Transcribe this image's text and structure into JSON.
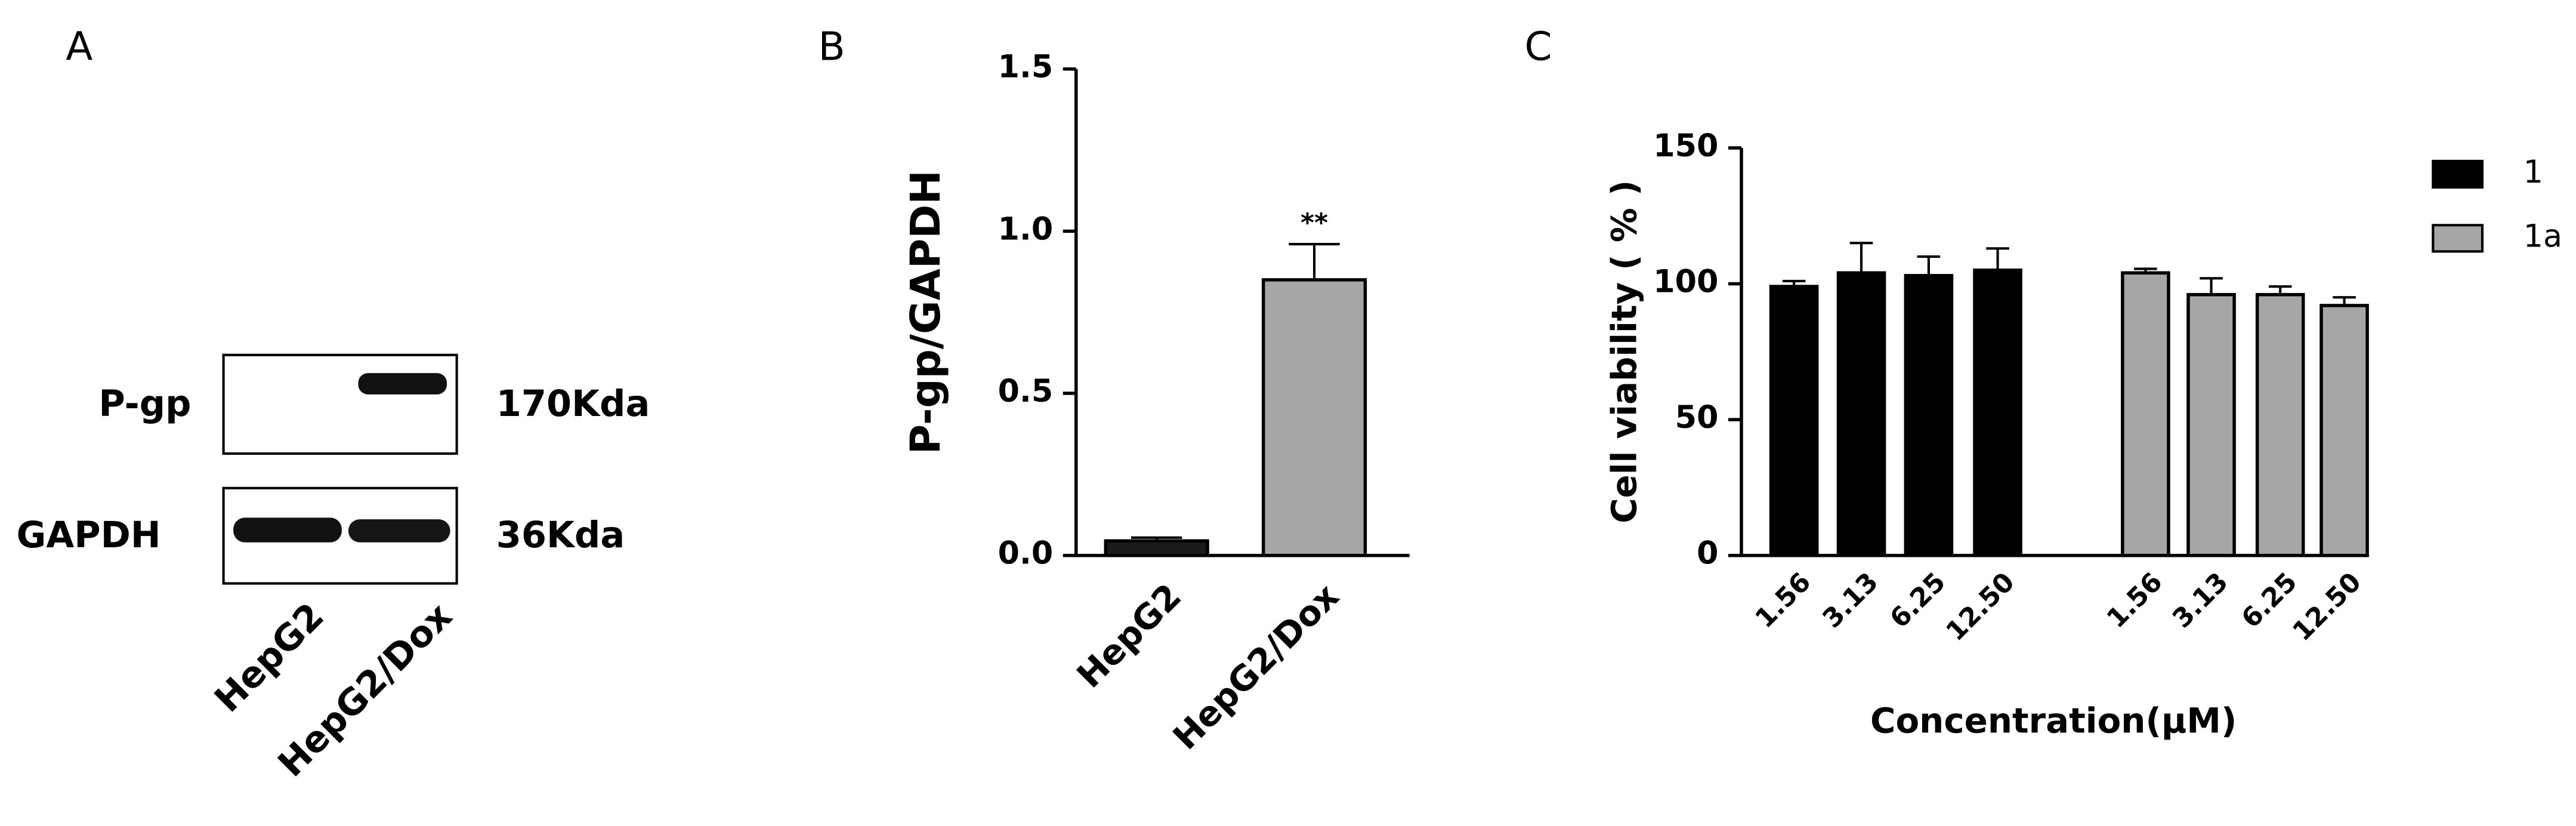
{
  "panel_labels": [
    "A",
    "B",
    "C"
  ],
  "blot": {
    "rows": [
      "P-gp",
      "GAPDH"
    ],
    "sizes": [
      "170Kda",
      "36Kda"
    ],
    "lanes": [
      "HepG2",
      "HepG2/Dox"
    ]
  },
  "chart_data": [
    {
      "type": "bar",
      "ylabel": "P-gp/GAPDH",
      "categories": [
        "HepG2",
        "HepG2/Dox"
      ],
      "values": [
        0.045,
        0.85
      ],
      "errors": [
        0.01,
        0.11
      ],
      "colors": [
        "#1a1a1a",
        "#a6a6a6"
      ],
      "annotations": [
        {
          "text": "**",
          "x": "HepG2/Dox"
        }
      ],
      "ylim": [
        0,
        1.5
      ],
      "yticks": [
        {
          "value": 0,
          "label": "0.0"
        },
        {
          "value": 0.5,
          "label": "0.5"
        },
        {
          "value": 1,
          "label": "1.0"
        },
        {
          "value": 1.5,
          "label": "1.5"
        }
      ]
    },
    {
      "type": "grouped_bar",
      "ylabel": "Cell viability ( % )",
      "xlabel": "Concentration(μM)",
      "categories": [
        "1.56",
        "3.13",
        "6.25",
        "12.50"
      ],
      "series": [
        {
          "name": "1",
          "color": "#000000",
          "values": [
            99,
            104,
            103,
            105
          ],
          "errors": [
            2,
            11,
            7,
            8
          ]
        },
        {
          "name": "1a",
          "color": "#a6a6a6",
          "values": [
            104,
            96,
            96,
            92
          ],
          "errors": [
            1.5,
            6,
            3,
            3
          ]
        }
      ],
      "ylim": [
        0,
        150
      ],
      "yticks": [
        0,
        50,
        100,
        150
      ],
      "legend": "right"
    }
  ]
}
